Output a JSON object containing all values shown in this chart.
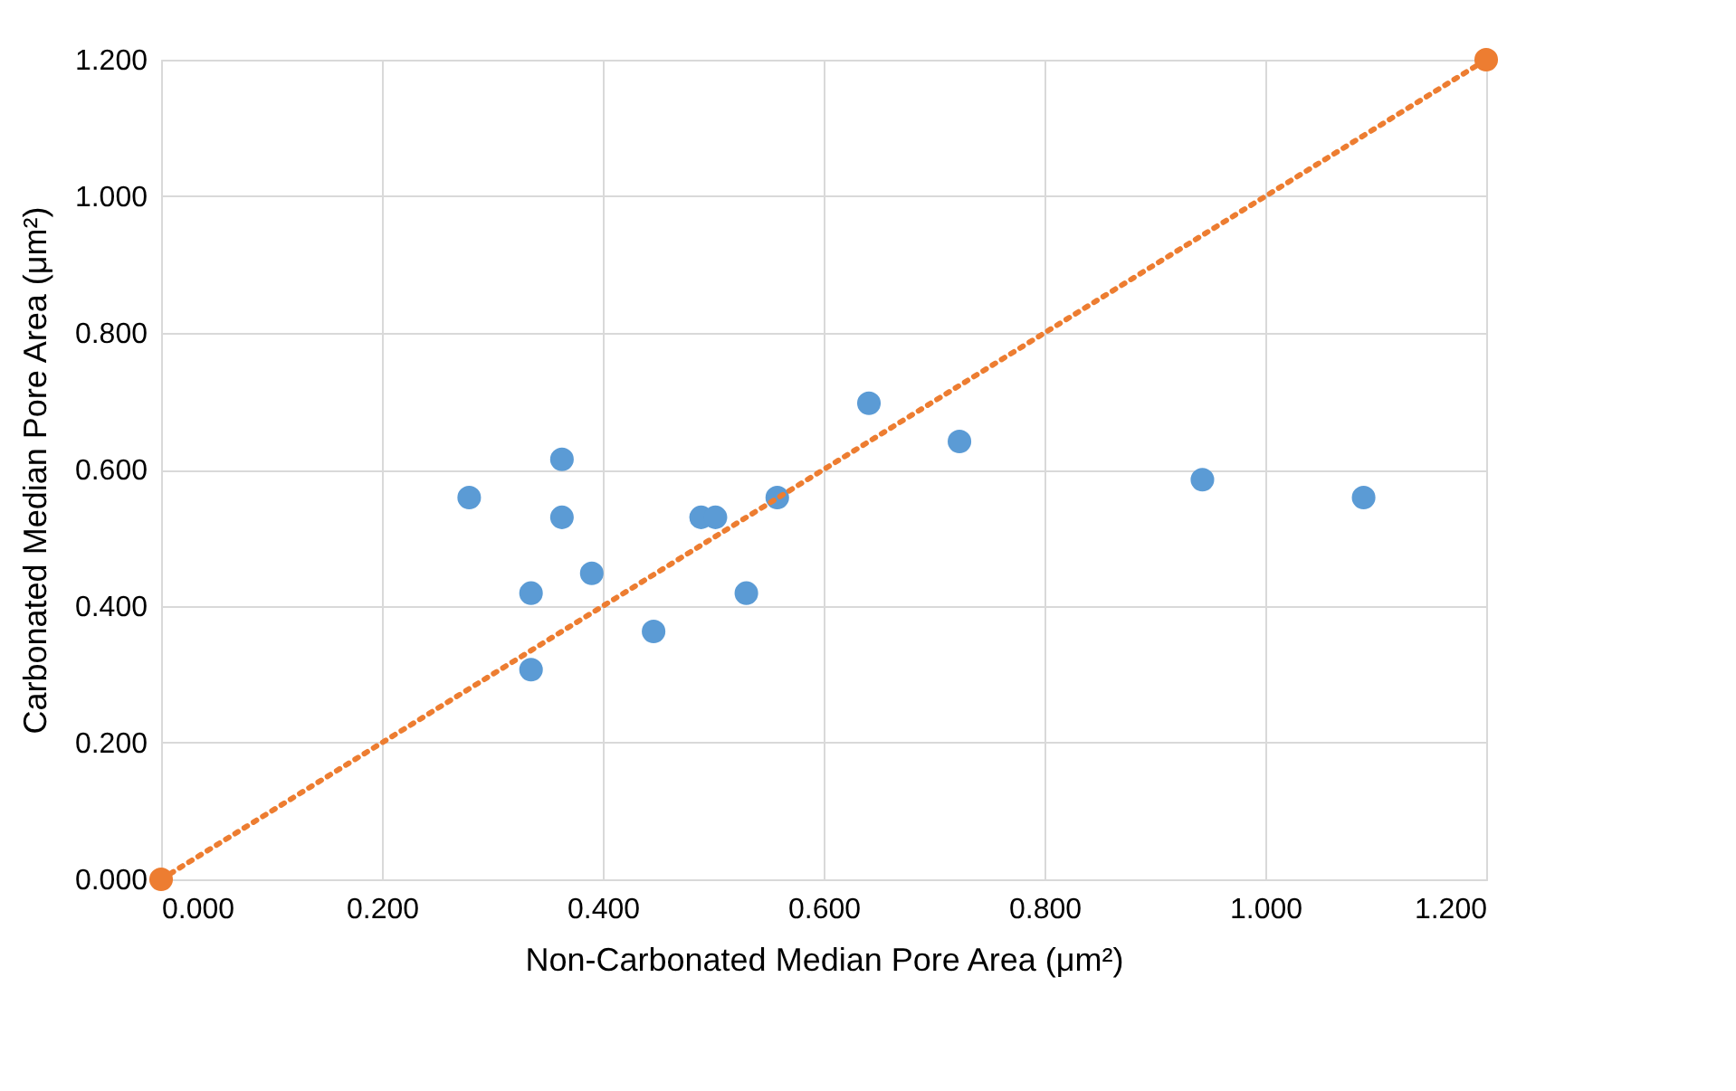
{
  "chart_data": {
    "type": "scatter",
    "xlabel": "Non-Carbonated Median Pore Area (μm²)",
    "ylabel": "Carbonated Median Pore  Area (μm²)",
    "xlim": [
      0,
      1.2
    ],
    "ylim": [
      0,
      1.2
    ],
    "xticks": [
      {
        "value": 0,
        "label": "0.000"
      },
      {
        "value": 0.2,
        "label": "0.200"
      },
      {
        "value": 0.4,
        "label": "0.400"
      },
      {
        "value": 0.6,
        "label": "0.600"
      },
      {
        "value": 0.8,
        "label": "0.800"
      },
      {
        "value": 1.0,
        "label": "1.000"
      },
      {
        "value": 1.2,
        "label": "1.200"
      }
    ],
    "yticks": [
      {
        "value": 0,
        "label": "0.000"
      },
      {
        "value": 0.2,
        "label": "0.200"
      },
      {
        "value": 0.4,
        "label": "0.400"
      },
      {
        "value": 0.6,
        "label": "0.600"
      },
      {
        "value": 0.8,
        "label": "0.800"
      },
      {
        "value": 1.0,
        "label": "1.000"
      },
      {
        "value": 1.2,
        "label": "1.200"
      }
    ],
    "grid": true,
    "series": [
      {
        "color": "#5b9bd5",
        "marker": "circle",
        "x": [
          0.279,
          0.363,
          0.363,
          0.335,
          0.39,
          0.335,
          0.446,
          0.489,
          0.502,
          0.53,
          0.558,
          0.641,
          0.723,
          0.943,
          1.089
        ],
        "values": [
          0.559,
          0.615,
          0.53,
          0.419,
          0.448,
          0.307,
          0.363,
          0.53,
          0.53,
          0.419,
          0.559,
          0.697,
          0.641,
          0.585,
          0.559
        ]
      },
      {
        "type": "line",
        "color": "#ed7d31",
        "marker": "circle",
        "line_style": "dotted",
        "x": [
          0,
          1.2
        ],
        "values": [
          0,
          1.2
        ]
      }
    ]
  }
}
